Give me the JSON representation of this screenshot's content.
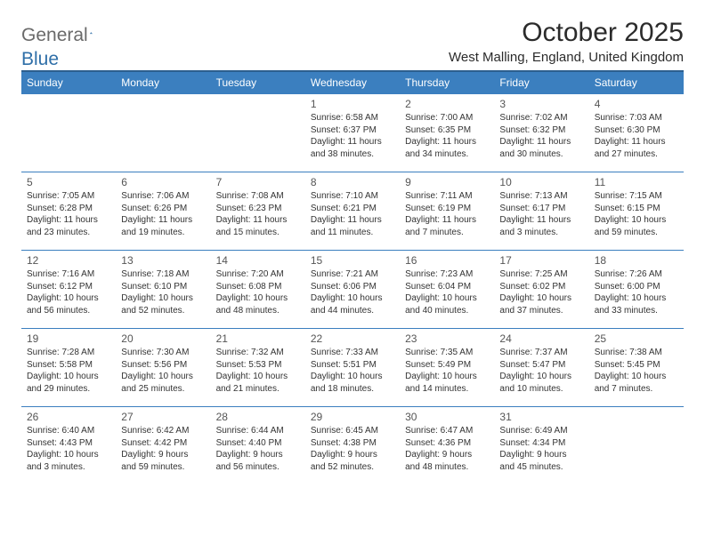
{
  "logo": {
    "word1": "General",
    "word2": "Blue"
  },
  "title": "October 2025",
  "location": "West Malling, England, United Kingdom",
  "header_color": "#3b7fbf",
  "header_border": "#2c5f8f",
  "days": [
    "Sunday",
    "Monday",
    "Tuesday",
    "Wednesday",
    "Thursday",
    "Friday",
    "Saturday"
  ],
  "weeks": [
    [
      null,
      null,
      null,
      {
        "n": "1",
        "sr": "6:58 AM",
        "ss": "6:37 PM",
        "dl": "11 hours and 38 minutes."
      },
      {
        "n": "2",
        "sr": "7:00 AM",
        "ss": "6:35 PM",
        "dl": "11 hours and 34 minutes."
      },
      {
        "n": "3",
        "sr": "7:02 AM",
        "ss": "6:32 PM",
        "dl": "11 hours and 30 minutes."
      },
      {
        "n": "4",
        "sr": "7:03 AM",
        "ss": "6:30 PM",
        "dl": "11 hours and 27 minutes."
      }
    ],
    [
      {
        "n": "5",
        "sr": "7:05 AM",
        "ss": "6:28 PM",
        "dl": "11 hours and 23 minutes."
      },
      {
        "n": "6",
        "sr": "7:06 AM",
        "ss": "6:26 PM",
        "dl": "11 hours and 19 minutes."
      },
      {
        "n": "7",
        "sr": "7:08 AM",
        "ss": "6:23 PM",
        "dl": "11 hours and 15 minutes."
      },
      {
        "n": "8",
        "sr": "7:10 AM",
        "ss": "6:21 PM",
        "dl": "11 hours and 11 minutes."
      },
      {
        "n": "9",
        "sr": "7:11 AM",
        "ss": "6:19 PM",
        "dl": "11 hours and 7 minutes."
      },
      {
        "n": "10",
        "sr": "7:13 AM",
        "ss": "6:17 PM",
        "dl": "11 hours and 3 minutes."
      },
      {
        "n": "11",
        "sr": "7:15 AM",
        "ss": "6:15 PM",
        "dl": "10 hours and 59 minutes."
      }
    ],
    [
      {
        "n": "12",
        "sr": "7:16 AM",
        "ss": "6:12 PM",
        "dl": "10 hours and 56 minutes."
      },
      {
        "n": "13",
        "sr": "7:18 AM",
        "ss": "6:10 PM",
        "dl": "10 hours and 52 minutes."
      },
      {
        "n": "14",
        "sr": "7:20 AM",
        "ss": "6:08 PM",
        "dl": "10 hours and 48 minutes."
      },
      {
        "n": "15",
        "sr": "7:21 AM",
        "ss": "6:06 PM",
        "dl": "10 hours and 44 minutes."
      },
      {
        "n": "16",
        "sr": "7:23 AM",
        "ss": "6:04 PM",
        "dl": "10 hours and 40 minutes."
      },
      {
        "n": "17",
        "sr": "7:25 AM",
        "ss": "6:02 PM",
        "dl": "10 hours and 37 minutes."
      },
      {
        "n": "18",
        "sr": "7:26 AM",
        "ss": "6:00 PM",
        "dl": "10 hours and 33 minutes."
      }
    ],
    [
      {
        "n": "19",
        "sr": "7:28 AM",
        "ss": "5:58 PM",
        "dl": "10 hours and 29 minutes."
      },
      {
        "n": "20",
        "sr": "7:30 AM",
        "ss": "5:56 PM",
        "dl": "10 hours and 25 minutes."
      },
      {
        "n": "21",
        "sr": "7:32 AM",
        "ss": "5:53 PM",
        "dl": "10 hours and 21 minutes."
      },
      {
        "n": "22",
        "sr": "7:33 AM",
        "ss": "5:51 PM",
        "dl": "10 hours and 18 minutes."
      },
      {
        "n": "23",
        "sr": "7:35 AM",
        "ss": "5:49 PM",
        "dl": "10 hours and 14 minutes."
      },
      {
        "n": "24",
        "sr": "7:37 AM",
        "ss": "5:47 PM",
        "dl": "10 hours and 10 minutes."
      },
      {
        "n": "25",
        "sr": "7:38 AM",
        "ss": "5:45 PM",
        "dl": "10 hours and 7 minutes."
      }
    ],
    [
      {
        "n": "26",
        "sr": "6:40 AM",
        "ss": "4:43 PM",
        "dl": "10 hours and 3 minutes."
      },
      {
        "n": "27",
        "sr": "6:42 AM",
        "ss": "4:42 PM",
        "dl": "9 hours and 59 minutes."
      },
      {
        "n": "28",
        "sr": "6:44 AM",
        "ss": "4:40 PM",
        "dl": "9 hours and 56 minutes."
      },
      {
        "n": "29",
        "sr": "6:45 AM",
        "ss": "4:38 PM",
        "dl": "9 hours and 52 minutes."
      },
      {
        "n": "30",
        "sr": "6:47 AM",
        "ss": "4:36 PM",
        "dl": "9 hours and 48 minutes."
      },
      {
        "n": "31",
        "sr": "6:49 AM",
        "ss": "4:34 PM",
        "dl": "9 hours and 45 minutes."
      },
      null
    ]
  ],
  "labels": {
    "sunrise": "Sunrise:",
    "sunset": "Sunset:",
    "daylight": "Daylight:"
  }
}
